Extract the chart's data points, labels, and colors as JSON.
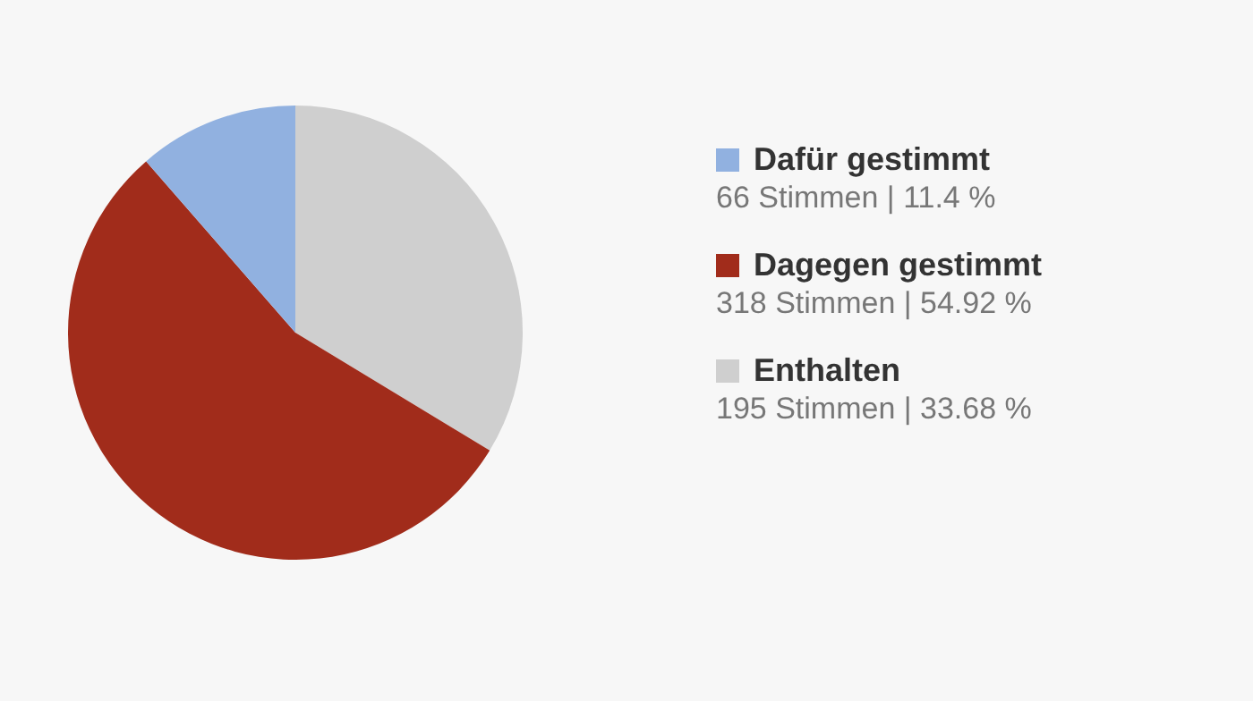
{
  "chart_data": {
    "type": "pie",
    "categories": [
      "Dafür gestimmt",
      "Dagegen gestimmt",
      "Enthalten"
    ],
    "values": [
      66,
      318,
      195
    ],
    "value_labels": [
      "66 Stimmen | 11.4 %",
      "318 Stimmen | 54.92 %",
      "195 Stimmen | 33.68 %"
    ],
    "colors": [
      "#91b1e0",
      "#a12c1b",
      "#cfcfcf"
    ],
    "legend": "right"
  }
}
